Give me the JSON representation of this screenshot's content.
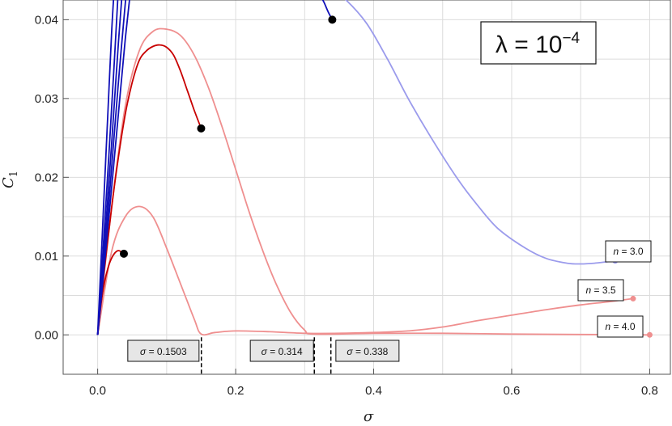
{
  "chart_data": {
    "type": "line",
    "xlabel": "σ",
    "ylabel": "C",
    "ylabel_sub": "1",
    "xlim": [
      -0.05,
      0.83
    ],
    "ylim": [
      -0.005,
      0.0425
    ],
    "xticks": [
      0.0,
      0.2,
      0.4,
      0.6,
      0.8
    ],
    "xtick_labels": [
      "0.0",
      "0.2",
      "0.4",
      "0.6",
      "0.8"
    ],
    "yticks": [
      0.0,
      0.01,
      0.02,
      0.03,
      0.04
    ],
    "ytick_labels": [
      "0.00",
      "0.01",
      "0.02",
      "0.03",
      "0.04"
    ],
    "grid": true,
    "annotation": {
      "lambda_label": "λ = 10",
      "lambda_exp": "−4"
    },
    "colors": {
      "dark_blue": "#1010b8",
      "light_blue": "#9b9bec",
      "dark_red": "#c80000",
      "light_red": "#ef8f8f",
      "dot": "#000000"
    },
    "series": [
      {
        "name": "n = 3.0",
        "color": "#9b9bec",
        "x": [
          0.32,
          0.34,
          0.36,
          0.39,
          0.42,
          0.45,
          0.48,
          0.52,
          0.55,
          0.58,
          0.62,
          0.65,
          0.68,
          0.7,
          0.72,
          0.75
        ],
        "y": [
          0.044,
          0.0437,
          0.0425,
          0.0395,
          0.035,
          0.03,
          0.0255,
          0.02,
          0.0165,
          0.0135,
          0.011,
          0.0097,
          0.0091,
          0.009,
          0.0091,
          0.0094
        ]
      },
      {
        "name": "n = 3.5",
        "color": "#ef8f8f",
        "x": [
          0.0,
          0.02,
          0.04,
          0.06,
          0.08,
          0.1,
          0.12,
          0.14,
          0.15,
          0.17,
          0.2,
          0.25,
          0.3,
          0.35,
          0.4,
          0.45,
          0.5,
          0.55,
          0.6,
          0.65,
          0.7,
          0.74,
          0.776
        ],
        "y": [
          0.0,
          0.0105,
          0.015,
          0.0163,
          0.015,
          0.011,
          0.0065,
          0.002,
          0.0001,
          0.0003,
          0.0005,
          0.0004,
          0.0002,
          0.0002,
          0.0003,
          0.0005,
          0.001,
          0.0018,
          0.0025,
          0.0032,
          0.0038,
          0.0042,
          0.0046
        ]
      },
      {
        "name": "n = 4.0",
        "color": "#ef8f8f",
        "x": [
          0.0,
          0.02,
          0.04,
          0.06,
          0.08,
          0.1,
          0.12,
          0.14,
          0.16,
          0.18,
          0.2,
          0.22,
          0.24,
          0.26,
          0.28,
          0.3,
          0.314,
          0.4,
          0.5,
          0.6,
          0.7,
          0.8
        ],
        "y": [
          0.0,
          0.016,
          0.029,
          0.036,
          0.0385,
          0.0388,
          0.038,
          0.0355,
          0.0315,
          0.0265,
          0.021,
          0.0155,
          0.0105,
          0.0062,
          0.0028,
          0.0006,
          0.0001,
          0.0002,
          0.0002,
          0.0001,
          5e-05,
          0.0
        ]
      },
      {
        "name": "dark-red-main",
        "color": "#c80000",
        "x": [
          0.0,
          0.01,
          0.02,
          0.03,
          0.04,
          0.05,
          0.06,
          0.07,
          0.08,
          0.09,
          0.1,
          0.11,
          0.12,
          0.13,
          0.14,
          0.15
        ],
        "y": [
          0.0,
          0.0085,
          0.016,
          0.0225,
          0.028,
          0.032,
          0.0348,
          0.036,
          0.0366,
          0.0368,
          0.0365,
          0.0355,
          0.0335,
          0.031,
          0.0285,
          0.0262
        ]
      },
      {
        "name": "dark-red-small",
        "color": "#c80000",
        "x": [
          0.0,
          0.005,
          0.01,
          0.015,
          0.02,
          0.025,
          0.03,
          0.035,
          0.038
        ],
        "y": [
          0.0,
          0.004,
          0.0067,
          0.0085,
          0.0097,
          0.0104,
          0.0107,
          0.0105,
          0.0103
        ]
      },
      {
        "name": "dark-blue-1",
        "color": "#1010b8",
        "x": [
          0.0,
          0.005,
          0.01,
          0.015,
          0.02,
          0.024
        ],
        "y": [
          0.0,
          0.0095,
          0.019,
          0.0285,
          0.038,
          0.044
        ]
      },
      {
        "name": "dark-blue-2",
        "color": "#1010b8",
        "x": [
          0.0,
          0.008,
          0.016,
          0.024,
          0.03
        ],
        "y": [
          0.0,
          0.011,
          0.0225,
          0.0345,
          0.044
        ]
      },
      {
        "name": "dark-blue-3",
        "color": "#1010b8",
        "x": [
          0.0,
          0.01,
          0.02,
          0.03,
          0.036
        ],
        "y": [
          0.0,
          0.0115,
          0.024,
          0.037,
          0.044
        ]
      },
      {
        "name": "dark-blue-4",
        "color": "#1010b8",
        "x": [
          0.0,
          0.01,
          0.02,
          0.03,
          0.042
        ],
        "y": [
          0.0,
          0.01,
          0.021,
          0.032,
          0.044
        ]
      },
      {
        "name": "dark-blue-5",
        "color": "#1010b8",
        "x": [
          0.0,
          0.01,
          0.02,
          0.03,
          0.04,
          0.048
        ],
        "y": [
          0.0,
          0.009,
          0.0185,
          0.028,
          0.0375,
          0.044
        ]
      },
      {
        "name": "dark-blue-top",
        "color": "#1010b8",
        "x": [
          0.318,
          0.322,
          0.328,
          0.334,
          0.34
        ],
        "y": [
          0.044,
          0.0432,
          0.0422,
          0.041,
          0.04
        ]
      }
    ],
    "points": [
      {
        "x": 0.038,
        "y": 0.0103,
        "color": "#000000"
      },
      {
        "x": 0.15,
        "y": 0.0262,
        "color": "#000000"
      },
      {
        "x": 0.34,
        "y": 0.04,
        "color": "#000000"
      },
      {
        "x": 0.75,
        "y": 0.0094,
        "color": "#9b9bec"
      },
      {
        "x": 0.776,
        "y": 0.0046,
        "color": "#ef8f8f"
      },
      {
        "x": 0.8,
        "y": 0.0,
        "color": "#ef8f8f"
      }
    ],
    "n_labels": [
      {
        "prefix": "n",
        "suffix": " = 3.0",
        "x": 0.75,
        "y": 0.0094
      },
      {
        "prefix": "n",
        "suffix": " = 3.5",
        "x": 0.776,
        "y": 0.0046
      },
      {
        "prefix": "n",
        "suffix": " = 4.0",
        "x": 0.8,
        "y": 0.0
      }
    ],
    "sigma_markers": [
      {
        "prefix": "σ",
        "suffix": " = 0.1503",
        "x": 0.1503
      },
      {
        "prefix": "σ",
        "suffix": " = 0.314",
        "x": 0.314
      },
      {
        "prefix": "σ",
        "suffix": " = 0.338",
        "x": 0.338
      }
    ]
  }
}
